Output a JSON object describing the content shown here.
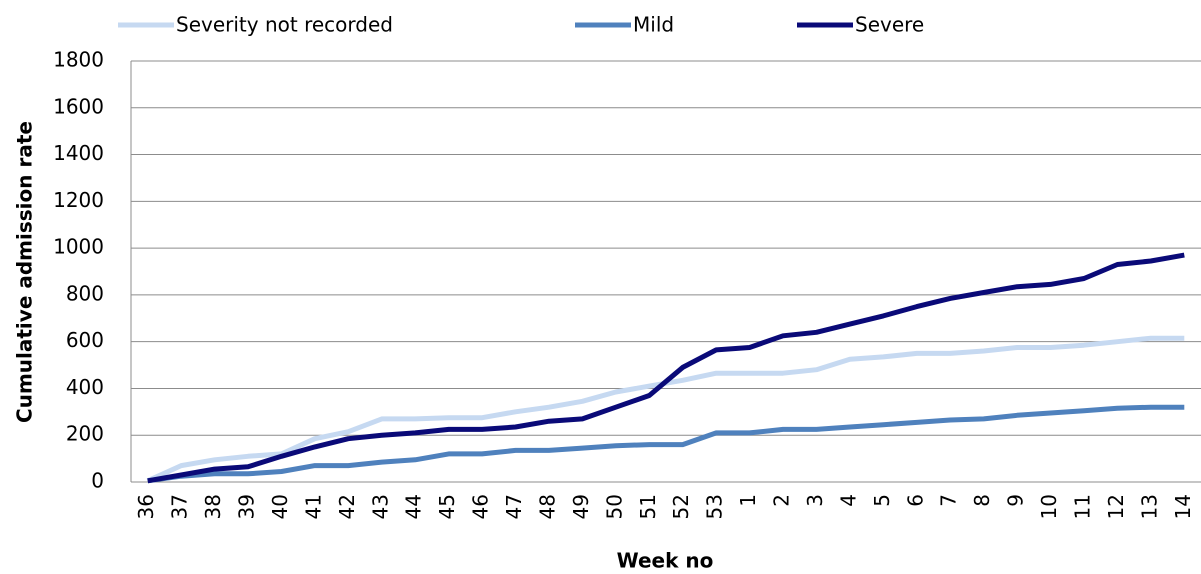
{
  "chart_data": {
    "type": "line",
    "x_label": "Week no",
    "y_label": "Cumulative admission rate",
    "categories": [
      "36",
      "37",
      "38",
      "39",
      "40",
      "41",
      "42",
      "43",
      "44",
      "45",
      "46",
      "47",
      "48",
      "49",
      "50",
      "51",
      "52",
      "53",
      "1",
      "2",
      "3",
      "4",
      "5",
      "6",
      "7",
      "8",
      "9",
      "10",
      "11",
      "12",
      "13",
      "14"
    ],
    "series": [
      {
        "name": "Severity not recorded",
        "color": "#c6d9f1",
        "values": [
          5,
          70,
          95,
          110,
          120,
          185,
          215,
          270,
          270,
          275,
          275,
          300,
          320,
          345,
          385,
          410,
          435,
          465,
          465,
          465,
          480,
          525,
          535,
          550,
          550,
          560,
          575,
          575,
          585,
          600,
          615,
          615
        ]
      },
      {
        "name": "Mild",
        "color": "#4f81bd",
        "values": [
          5,
          25,
          35,
          35,
          45,
          70,
          70,
          85,
          95,
          120,
          120,
          135,
          135,
          145,
          155,
          160,
          160,
          210,
          210,
          225,
          225,
          235,
          245,
          255,
          265,
          270,
          285,
          295,
          305,
          315,
          320,
          320
        ]
      },
      {
        "name": "Severe",
        "color": "#0a0a78",
        "values": [
          5,
          30,
          55,
          65,
          110,
          150,
          185,
          200,
          210,
          225,
          225,
          235,
          260,
          270,
          320,
          370,
          490,
          565,
          575,
          625,
          640,
          675,
          710,
          750,
          785,
          810,
          835,
          845,
          870,
          930,
          945,
          970
        ]
      }
    ],
    "ylim": [
      0,
      1800
    ],
    "yticks": [
      0,
      200,
      400,
      600,
      800,
      1000,
      1200,
      1400,
      1600,
      1800
    ],
    "grid": true,
    "legend": "top"
  }
}
